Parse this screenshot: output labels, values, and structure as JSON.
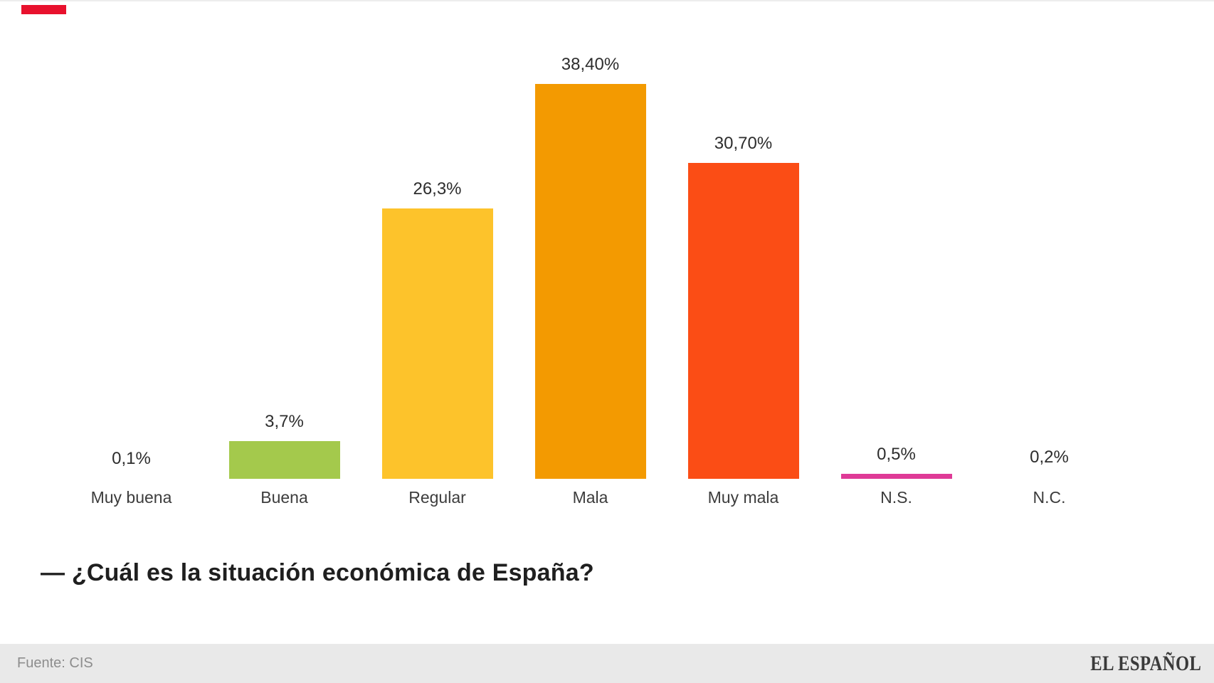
{
  "chart_data": {
    "type": "bar",
    "question": "— ¿Cuál es la situación económica de España?",
    "categories": [
      "Muy buena",
      "Buena",
      "Regular",
      "Mala",
      "Muy mala",
      "N.S.",
      "N.C."
    ],
    "values": [
      0.1,
      3.7,
      26.3,
      38.4,
      30.7,
      0.5,
      0.2
    ],
    "value_labels": [
      "0,1%",
      "3,7%",
      "26,3%",
      "38,40%",
      "30,70%",
      "0,5%",
      "0,2%"
    ],
    "bar_colors": [
      null,
      "#a4c94c",
      "#fdc32b",
      "#f39a01",
      "#fb4d15",
      "#df3a97",
      null
    ],
    "ylim": [
      0,
      40
    ],
    "grid": "off",
    "axes": "hidden",
    "legend": "none"
  },
  "footer": {
    "source": "Fuente: CIS",
    "brand": "EL ESPAÑOL"
  },
  "palette": {
    "accent_bar": "#e8112d",
    "footer_bg": "#e9e9e9",
    "value_text": "#2d2d2d",
    "category_text": "#3c3c3c",
    "question_text": "#1f1f1f",
    "source_text": "#8d8d8d"
  }
}
